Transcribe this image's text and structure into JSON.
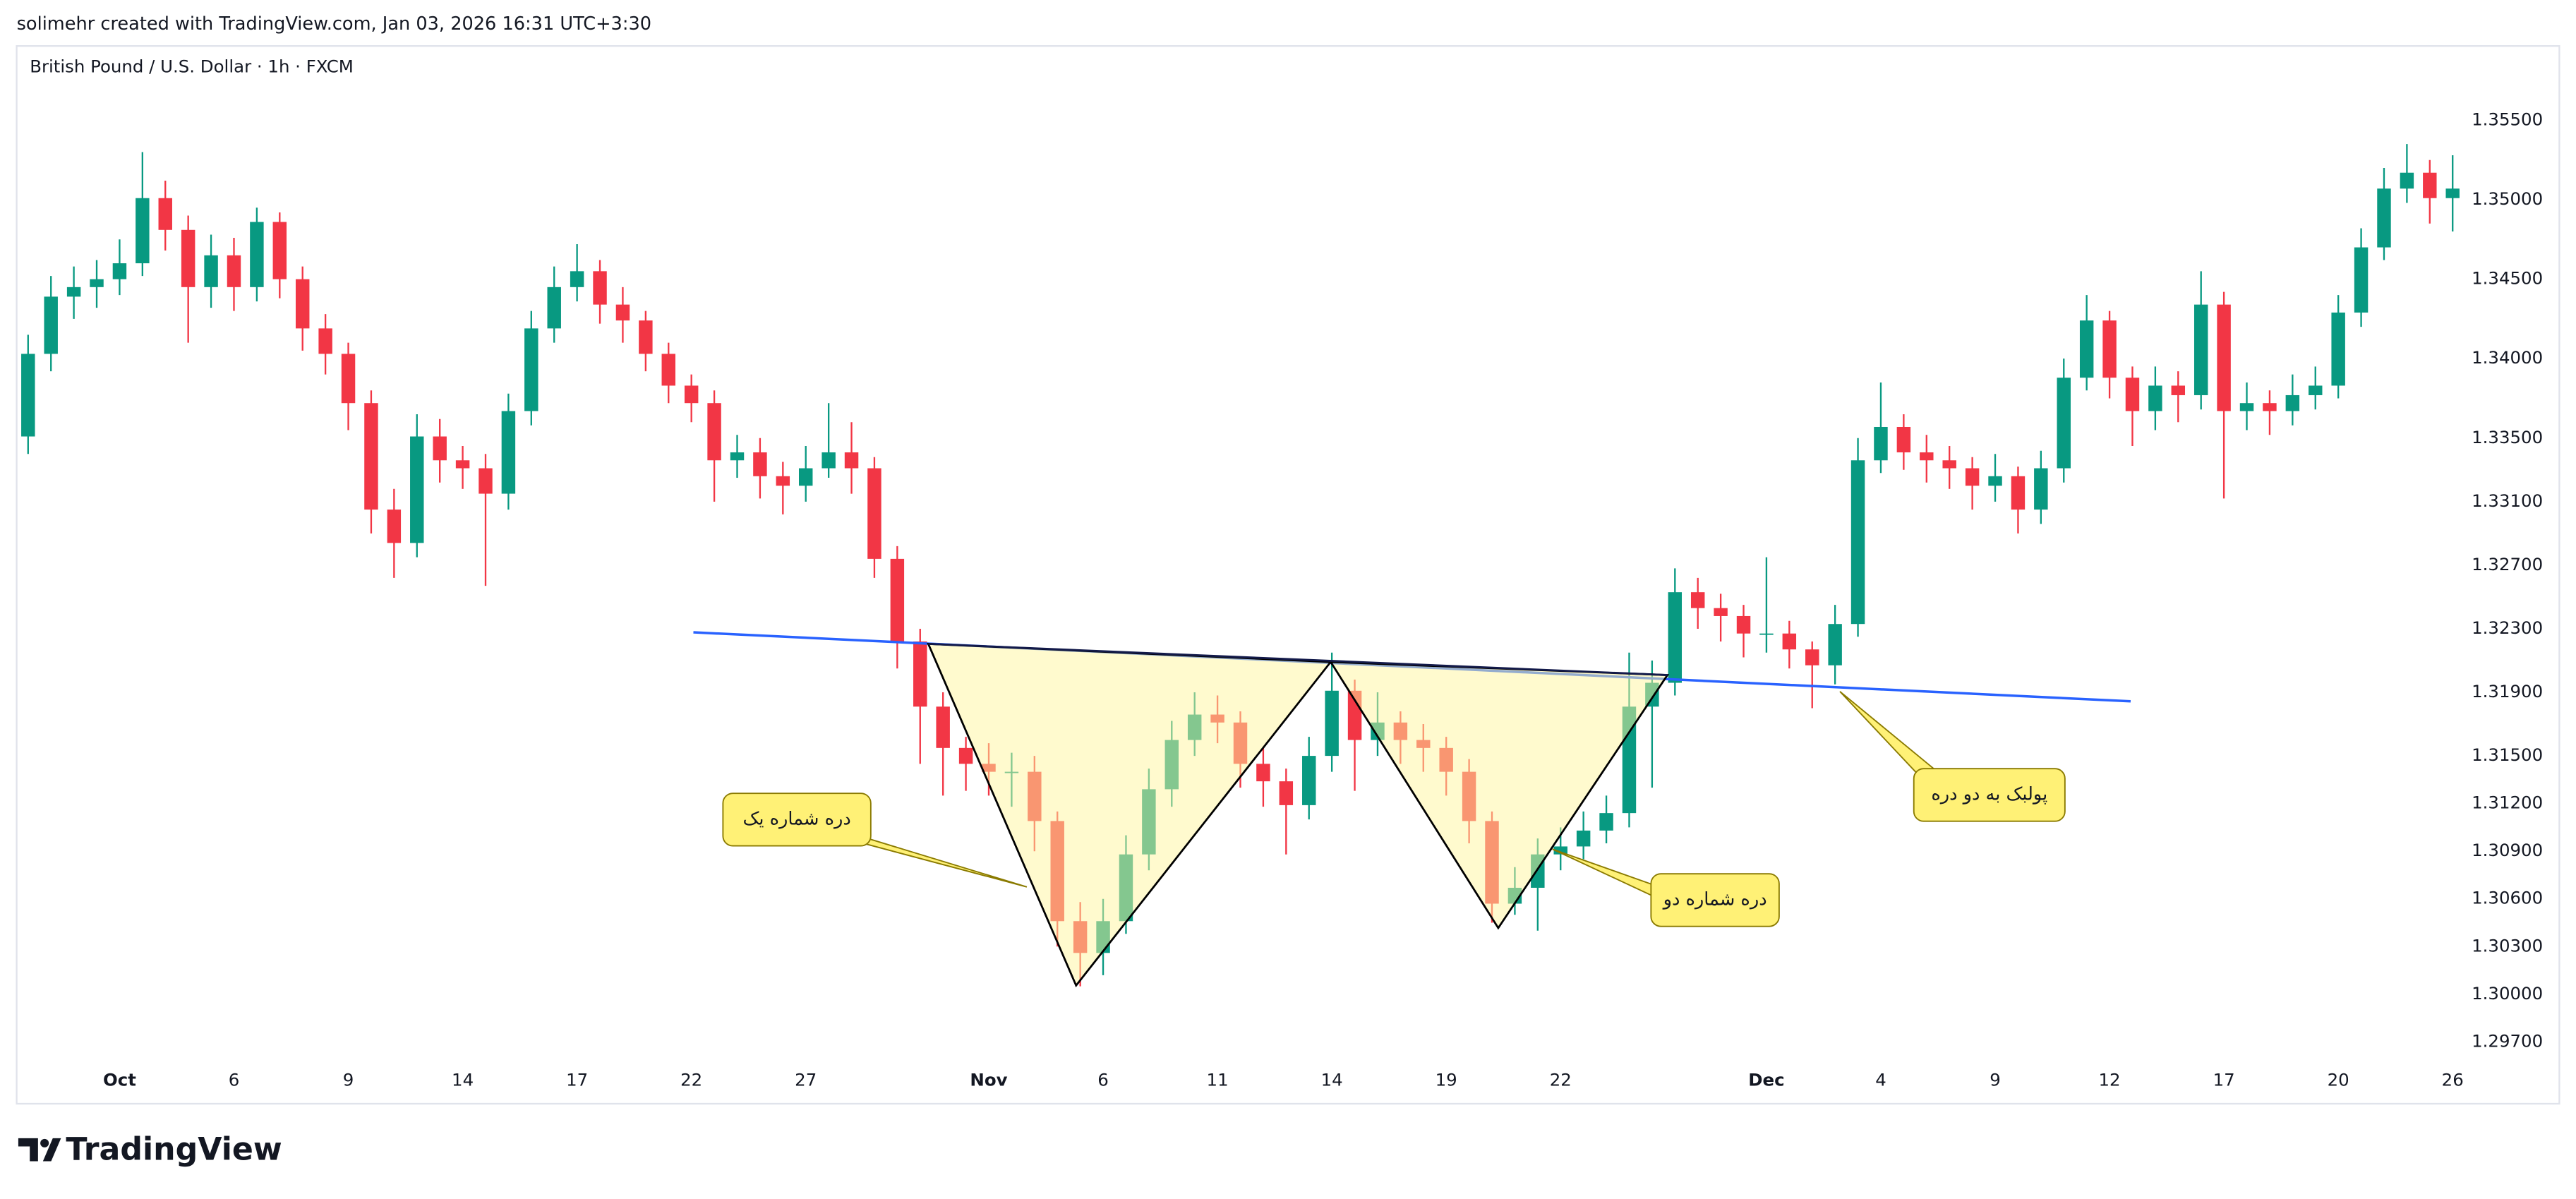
{
  "chart_data": {
    "type": "candlestick",
    "attribution": "solimehr created with TradingView.com, Jan 03, 2026 16:31 UTC+3:30",
    "title": "British Pound / U.S. Dollar · 1h · FXCM",
    "brand": "TradingView",
    "annotations": [
      "دره شماره یک",
      "دره شماره دو",
      "پولبک به دو دره"
    ],
    "up_color": "#089981",
    "down_color": "#f23645",
    "grid": false,
    "categories": [
      null,
      null,
      null,
      null,
      "Oct",
      null,
      null,
      null,
      null,
      "6",
      null,
      null,
      null,
      null,
      "9",
      null,
      null,
      null,
      null,
      "14",
      null,
      null,
      null,
      null,
      "17",
      null,
      null,
      null,
      null,
      "22",
      null,
      null,
      null,
      null,
      "27",
      null,
      null,
      null,
      null,
      null,
      null,
      null,
      "Nov",
      null,
      null,
      null,
      null,
      "6",
      null,
      null,
      null,
      null,
      "11",
      null,
      null,
      null,
      null,
      "14",
      null,
      null,
      null,
      null,
      "19",
      null,
      null,
      null,
      null,
      "22",
      null,
      null,
      null,
      null,
      null,
      null,
      null,
      null,
      "Dec",
      null,
      null,
      null,
      null,
      "4",
      null,
      null,
      null,
      null,
      "9",
      null,
      null,
      null,
      null,
      "12",
      null,
      null,
      null,
      null,
      "17",
      null,
      null,
      null,
      null,
      "20",
      null,
      null,
      null,
      null,
      "26"
    ],
    "open": [
      1.3351,
      1.3403,
      1.3439,
      1.3445,
      1.345,
      1.346,
      1.3501,
      1.3481,
      1.3445,
      1.3465,
      1.3445,
      1.3486,
      1.345,
      1.3419,
      1.3403,
      1.3372,
      1.3305,
      1.3284,
      1.3351,
      1.3336,
      1.3331,
      1.3315,
      1.3367,
      1.3419,
      1.3445,
      1.3455,
      1.3434,
      1.3424,
      1.3403,
      1.3383,
      1.3372,
      1.3336,
      1.3341,
      1.3326,
      1.332,
      1.3331,
      1.3341,
      1.3331,
      1.3274,
      1.3222,
      1.3181,
      1.3155,
      1.3145,
      1.314,
      1.314,
      1.3109,
      1.3046,
      1.3026,
      1.3046,
      1.3088,
      1.3129,
      1.316,
      1.3176,
      1.3171,
      1.3145,
      1.3134,
      1.3119,
      1.315,
      1.3191,
      1.316,
      1.3171,
      1.316,
      1.3155,
      1.314,
      1.3109,
      1.3057,
      1.3067,
      1.3088,
      1.3093,
      1.3103,
      1.3114,
      1.3181,
      1.3196,
      1.3253,
      1.3243,
      1.3238,
      1.3227,
      1.3227,
      1.3217,
      1.3207,
      1.3233,
      1.3336,
      1.3357,
      1.3341,
      1.3336,
      1.3331,
      1.332,
      1.3326,
      1.3305,
      1.3331,
      1.3388,
      1.3424,
      1.3388,
      1.3367,
      1.3383,
      1.3377,
      1.3434,
      1.3367,
      1.3372,
      1.3367,
      1.3377,
      1.3383,
      1.3429,
      1.347,
      1.3507,
      1.3517,
      1.3501
    ],
    "high": [
      1.3415,
      1.3452,
      1.3458,
      1.3462,
      1.3475,
      1.353,
      1.3512,
      1.349,
      1.3478,
      1.3476,
      1.3495,
      1.3492,
      1.3458,
      1.3428,
      1.341,
      1.338,
      1.3318,
      1.3365,
      1.3362,
      1.3345,
      1.334,
      1.3378,
      1.343,
      1.3458,
      1.3472,
      1.3462,
      1.3445,
      1.343,
      1.341,
      1.339,
      1.338,
      1.3352,
      1.335,
      1.3335,
      1.3345,
      1.3372,
      1.336,
      1.3338,
      1.3282,
      1.323,
      1.319,
      1.3162,
      1.3158,
      1.3152,
      1.315,
      1.3115,
      1.3058,
      1.306,
      1.31,
      1.3142,
      1.3172,
      1.319,
      1.3188,
      1.3178,
      1.3155,
      1.3142,
      1.3162,
      1.3215,
      1.3198,
      1.319,
      1.3178,
      1.317,
      1.3162,
      1.3148,
      1.3115,
      1.308,
      1.3098,
      1.3105,
      1.3115,
      1.3125,
      1.3215,
      1.321,
      1.3268,
      1.3262,
      1.3252,
      1.3245,
      1.3275,
      1.3235,
      1.3222,
      1.3245,
      1.335,
      1.3385,
      1.3365,
      1.3352,
      1.3345,
      1.3338,
      1.334,
      1.3332,
      1.3342,
      1.34,
      1.344,
      1.343,
      1.3395,
      1.3395,
      1.3392,
      1.3455,
      1.3442,
      1.3385,
      1.338,
      1.339,
      1.3395,
      1.344,
      1.3482,
      1.352,
      1.3535,
      1.3525,
      1.3528
    ],
    "low": [
      1.334,
      1.3392,
      1.3425,
      1.3432,
      1.344,
      1.3452,
      1.3468,
      1.341,
      1.3432,
      1.343,
      1.3436,
      1.3438,
      1.3405,
      1.339,
      1.3355,
      1.329,
      1.3262,
      1.3275,
      1.3322,
      1.3318,
      1.3257,
      1.3305,
      1.3358,
      1.341,
      1.3436,
      1.3422,
      1.341,
      1.3392,
      1.3372,
      1.336,
      1.331,
      1.3325,
      1.3312,
      1.3302,
      1.331,
      1.3325,
      1.3315,
      1.3262,
      1.3205,
      1.3145,
      1.3125,
      1.3128,
      1.3125,
      1.3118,
      1.309,
      1.303,
      1.3005,
      1.3012,
      1.3038,
      1.3078,
      1.3118,
      1.315,
      1.3158,
      1.313,
      1.3118,
      1.3088,
      1.311,
      1.314,
      1.3128,
      1.315,
      1.3145,
      1.314,
      1.3125,
      1.3095,
      1.3045,
      1.305,
      1.304,
      1.3078,
      1.3085,
      1.3095,
      1.3105,
      1.313,
      1.3188,
      1.323,
      1.3222,
      1.3212,
      1.3215,
      1.3205,
      1.318,
      1.3195,
      1.3225,
      1.3328,
      1.333,
      1.3322,
      1.3318,
      1.3305,
      1.331,
      1.329,
      1.3296,
      1.3322,
      1.338,
      1.3375,
      1.3345,
      1.3355,
      1.336,
      1.3368,
      1.3312,
      1.3355,
      1.3352,
      1.3358,
      1.3368,
      1.3375,
      1.342,
      1.3462,
      1.3498,
      1.3485,
      1.348
    ],
    "close": [
      1.3403,
      1.3439,
      1.3445,
      1.345,
      1.346,
      1.3501,
      1.3481,
      1.3445,
      1.3465,
      1.3445,
      1.3486,
      1.345,
      1.3419,
      1.3403,
      1.3372,
      1.3305,
      1.3284,
      1.3351,
      1.3336,
      1.3331,
      1.3315,
      1.3367,
      1.3419,
      1.3445,
      1.3455,
      1.3434,
      1.3424,
      1.3403,
      1.3383,
      1.3372,
      1.3336,
      1.3341,
      1.3326,
      1.332,
      1.3331,
      1.3341,
      1.3331,
      1.3274,
      1.3222,
      1.3181,
      1.3155,
      1.3145,
      1.314,
      1.314,
      1.3109,
      1.3046,
      1.3026,
      1.3046,
      1.3088,
      1.3129,
      1.316,
      1.3176,
      1.3171,
      1.3145,
      1.3134,
      1.3119,
      1.315,
      1.3191,
      1.316,
      1.3171,
      1.316,
      1.3155,
      1.314,
      1.3109,
      1.3057,
      1.3067,
      1.3088,
      1.3093,
      1.3103,
      1.3114,
      1.3181,
      1.3196,
      1.3253,
      1.3243,
      1.3238,
      1.3227,
      1.3227,
      1.3217,
      1.3207,
      1.3233,
      1.3336,
      1.3357,
      1.3341,
      1.3336,
      1.3331,
      1.332,
      1.3326,
      1.3305,
      1.3331,
      1.3388,
      1.3424,
      1.3388,
      1.3367,
      1.3383,
      1.3377,
      1.3434,
      1.3367,
      1.3372,
      1.3367,
      1.3377,
      1.3383,
      1.3429,
      1.347,
      1.3507,
      1.3517,
      1.3501,
      1.3507
    ],
    "ylim": [
      1.2959,
      1.3574
    ],
    "yticks": [
      {
        "value": 1.355,
        "label": "1.35500"
      },
      {
        "value": 1.35,
        "label": "1.35000"
      },
      {
        "value": 1.345,
        "label": "1.34500"
      },
      {
        "value": 1.34,
        "label": "1.34000"
      },
      {
        "value": 1.335,
        "label": "1.33500"
      },
      {
        "value": 1.331,
        "label": "1.33100"
      },
      {
        "value": 1.327,
        "label": "1.32700"
      },
      {
        "value": 1.323,
        "label": "1.32300"
      },
      {
        "value": 1.319,
        "label": "1.31900"
      },
      {
        "value": 1.315,
        "label": "1.31500"
      },
      {
        "value": 1.312,
        "label": "1.31200"
      },
      {
        "value": 1.309,
        "label": "1.30900"
      },
      {
        "value": 1.306,
        "label": "1.30600"
      },
      {
        "value": 1.303,
        "label": "1.30300"
      },
      {
        "value": 1.3,
        "label": "1.30000"
      },
      {
        "value": 1.297,
        "label": "1.29700"
      }
    ]
  }
}
